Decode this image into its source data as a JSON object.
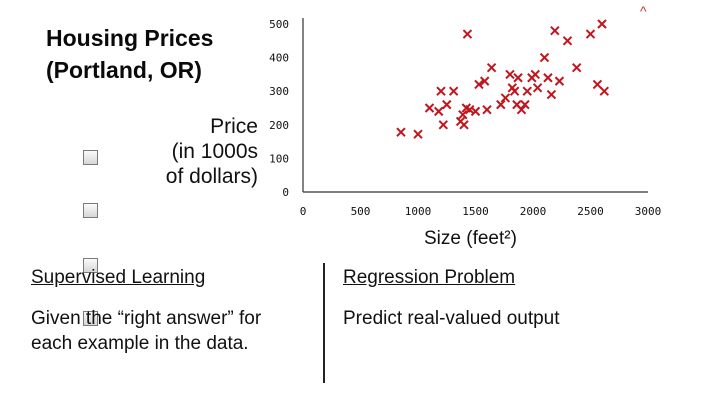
{
  "slide": {
    "title_line1": "Housing Prices",
    "title_line2": "(Portland, OR)",
    "left_heading": "Supervised Learning",
    "left_body_line1": "Given the “right answer” for",
    "left_body_line2": "each example in the data.",
    "right_heading": "Regression Problem",
    "right_body": "Predict real-valued output"
  },
  "chart_data": {
    "type": "scatter",
    "title": "",
    "xlabel": "Size (feet²)",
    "ylabel_lines": [
      "Price",
      "(in 1000s",
      "of dollars)"
    ],
    "xlim": [
      0,
      3000
    ],
    "ylim": [
      0,
      500
    ],
    "xticks": [
      0,
      500,
      1000,
      1500,
      2000,
      2500,
      3000
    ],
    "yticks": [
      0,
      100,
      200,
      300,
      400,
      500
    ],
    "grid": false,
    "marker": "x",
    "color": "#c0161e",
    "points": [
      [
        852,
        178
      ],
      [
        1000,
        172
      ],
      [
        1100,
        250
      ],
      [
        1180,
        240
      ],
      [
        1200,
        300
      ],
      [
        1220,
        200
      ],
      [
        1250,
        260
      ],
      [
        1310,
        300
      ],
      [
        1370,
        210
      ],
      [
        1390,
        230
      ],
      [
        1400,
        200
      ],
      [
        1420,
        250
      ],
      [
        1430,
        470
      ],
      [
        1450,
        245
      ],
      [
        1500,
        240
      ],
      [
        1530,
        320
      ],
      [
        1580,
        330
      ],
      [
        1600,
        245
      ],
      [
        1640,
        370
      ],
      [
        1720,
        260
      ],
      [
        1760,
        280
      ],
      [
        1800,
        350
      ],
      [
        1820,
        310
      ],
      [
        1840,
        300
      ],
      [
        1860,
        260
      ],
      [
        1870,
        340
      ],
      [
        1900,
        245
      ],
      [
        1930,
        260
      ],
      [
        1950,
        300
      ],
      [
        1990,
        340
      ],
      [
        2020,
        350
      ],
      [
        2040,
        310
      ],
      [
        2100,
        400
      ],
      [
        2130,
        340
      ],
      [
        2160,
        290
      ],
      [
        2190,
        480
      ],
      [
        2230,
        330
      ],
      [
        2300,
        450
      ],
      [
        2380,
        370
      ],
      [
        2500,
        470
      ],
      [
        2560,
        320
      ],
      [
        2600,
        500
      ],
      [
        2620,
        300
      ]
    ]
  },
  "controls": {
    "collapse_icon": "^",
    "checkbox_count": 4
  }
}
